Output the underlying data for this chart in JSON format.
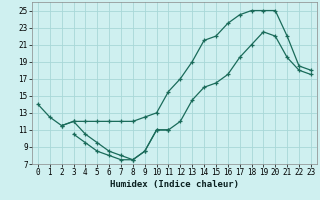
{
  "xlabel": "Humidex (Indice chaleur)",
  "bg_color": "#cff0f0",
  "grid_color": "#a8d8d8",
  "line_color": "#1a6b5a",
  "xlim": [
    -0.5,
    23.5
  ],
  "ylim": [
    7,
    26
  ],
  "xticks": [
    0,
    1,
    2,
    3,
    4,
    5,
    6,
    7,
    8,
    9,
    10,
    11,
    12,
    13,
    14,
    15,
    16,
    17,
    18,
    19,
    20,
    21,
    22,
    23
  ],
  "yticks": [
    7,
    9,
    11,
    13,
    15,
    17,
    19,
    21,
    23,
    25
  ],
  "line1_x": [
    0,
    1,
    2,
    3,
    4,
    5,
    6,
    7,
    8,
    9,
    10,
    11,
    12,
    13,
    14,
    15,
    16,
    17,
    18,
    19,
    20,
    21,
    22,
    23
  ],
  "line1_y": [
    14,
    12.5,
    11.5,
    12,
    12,
    12,
    12,
    12,
    12,
    12.5,
    13,
    15.5,
    17,
    19,
    21.5,
    22,
    23.5,
    24.5,
    25,
    25,
    25,
    22,
    18.5,
    18
  ],
  "line2_x": [
    3,
    4,
    5,
    6,
    7,
    8,
    9,
    10,
    11
  ],
  "line2_y": [
    10.5,
    9.5,
    8.5,
    8,
    7.5,
    7.5,
    8.5,
    11,
    11
  ],
  "line3_x": [
    2,
    3,
    4,
    5,
    6,
    7,
    8,
    9,
    10,
    11,
    12,
    13,
    14,
    15,
    16,
    17,
    18,
    19,
    20,
    21,
    22,
    23
  ],
  "line3_y": [
    11.5,
    12,
    10.5,
    9.5,
    8.5,
    8,
    7.5,
    8.5,
    11,
    11,
    12,
    14.5,
    16,
    16.5,
    17.5,
    19.5,
    21,
    22.5,
    22,
    19.5,
    18,
    17.5
  ]
}
